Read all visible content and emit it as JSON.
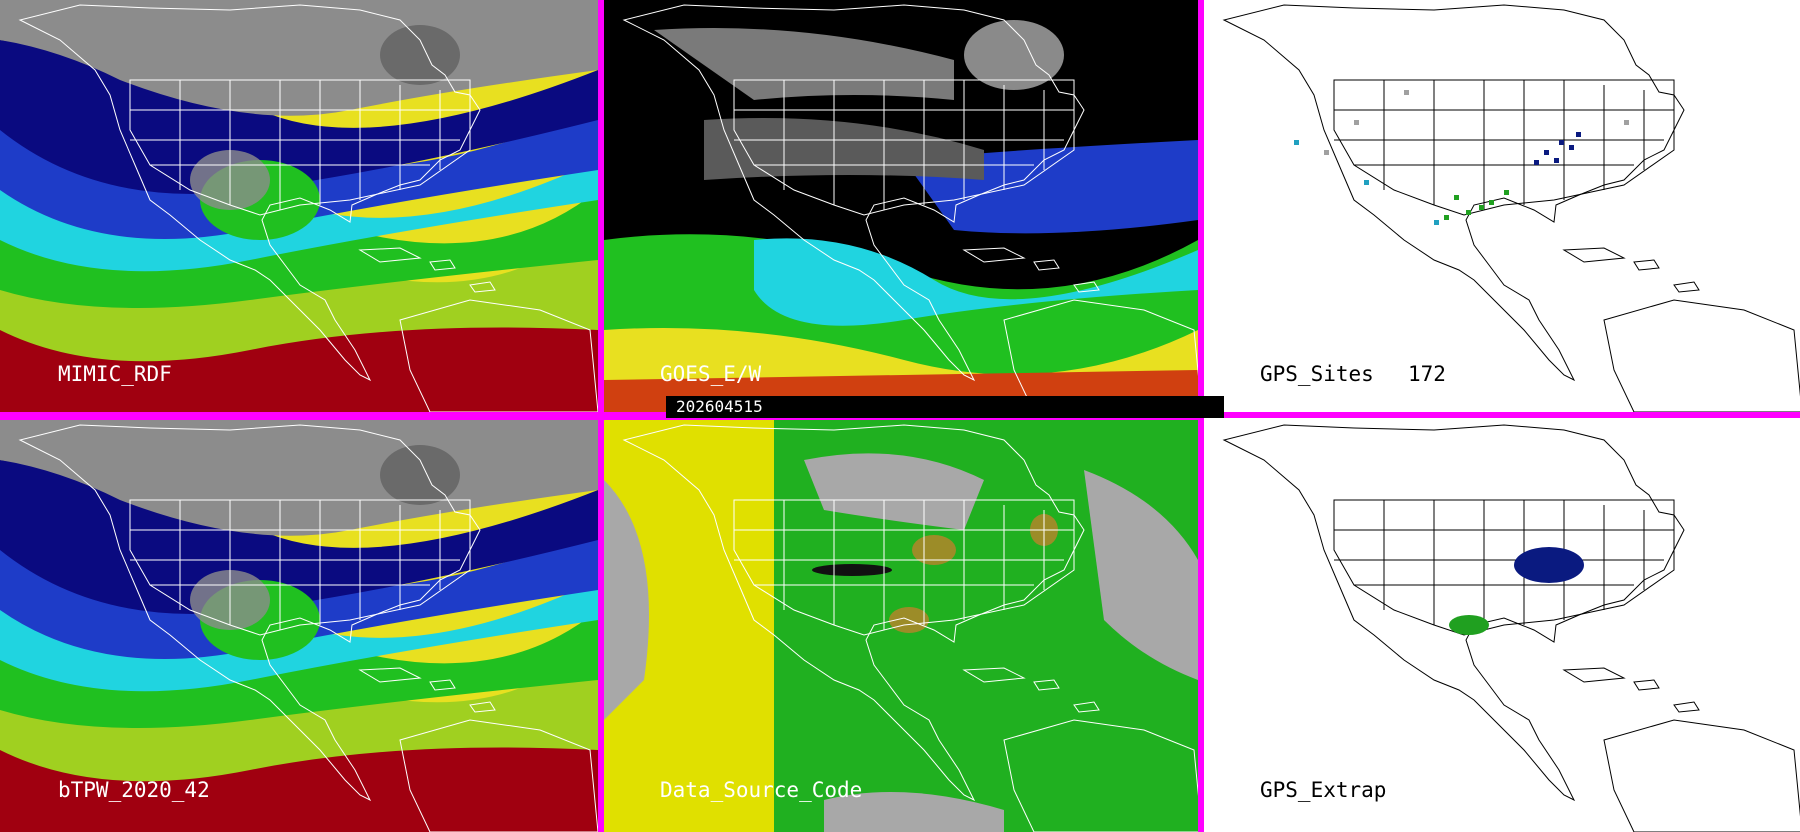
{
  "panels": [
    {
      "id": "mimic-rdf",
      "label": "MIMIC_RDF",
      "theme": "tpw"
    },
    {
      "id": "goes-ew",
      "label": "GOES_E/W",
      "theme": "goes"
    },
    {
      "id": "gps-sites",
      "label": "GPS_Sites",
      "count": "172",
      "theme": "gps"
    },
    {
      "id": "btpw",
      "label": "bTPW_2020_42",
      "theme": "tpw"
    },
    {
      "id": "data-source-code",
      "label": "Data_Source_Code",
      "theme": "dsc"
    },
    {
      "id": "gps-extrap",
      "label": "GPS_Extrap",
      "theme": "gps"
    }
  ],
  "timestamp": "202604515",
  "colors": {
    "divider": "#ff00ff",
    "palette_tpw": [
      "#8c8c8c",
      "#0a0a80",
      "#1e3cc8",
      "#20d4e0",
      "#20c020",
      "#a0d020",
      "#e8e020",
      "#d04010",
      "#a00010"
    ],
    "palette_dsc": [
      "#a8a8a8",
      "#e0e000",
      "#20b020",
      "#9c8c28"
    ],
    "gps_markers": [
      "#0a1a80",
      "#20a020",
      "#a0a0a0",
      "#20a0c0"
    ]
  }
}
